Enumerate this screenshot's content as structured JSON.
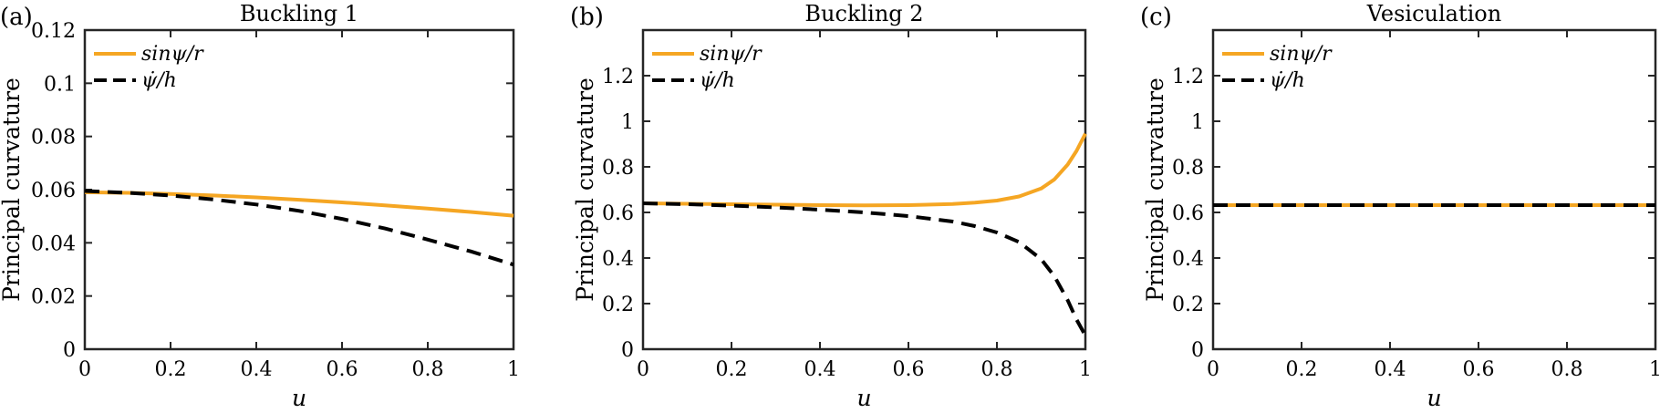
{
  "chart_data": [
    {
      "type": "line",
      "panel_label": "(a)",
      "title": "Buckling 1",
      "xlabel": "u",
      "ylabel": "Principal curvature",
      "xlim": [
        0,
        1
      ],
      "ylim": [
        0,
        0.12
      ],
      "xticks": [
        "0",
        "0.2",
        "0.4",
        "0.6",
        "0.8",
        "1"
      ],
      "yticks": [
        "0",
        "0.02",
        "0.04",
        "0.06",
        "0.08",
        "0.1",
        "0.12"
      ],
      "legend_position": "top-left",
      "series": [
        {
          "name": "sinψ/r",
          "color": "#f5a623",
          "style": "solid",
          "x": [
            0,
            0.1,
            0.2,
            0.3,
            0.4,
            0.5,
            0.6,
            0.7,
            0.8,
            0.9,
            1.0
          ],
          "y": [
            0.059,
            0.0588,
            0.0584,
            0.0578,
            0.0571,
            0.0562,
            0.0552,
            0.0541,
            0.0529,
            0.0516,
            0.0502
          ]
        },
        {
          "name": "ψ̇/h",
          "color": "#000000",
          "style": "dashed",
          "x": [
            0,
            0.1,
            0.2,
            0.3,
            0.4,
            0.5,
            0.6,
            0.7,
            0.8,
            0.9,
            1.0
          ],
          "y": [
            0.0595,
            0.0588,
            0.0578,
            0.0563,
            0.0544,
            0.052,
            0.049,
            0.0454,
            0.0412,
            0.0368,
            0.0318
          ]
        }
      ]
    },
    {
      "type": "line",
      "panel_label": "(b)",
      "title": "Buckling 2",
      "xlabel": "u",
      "ylabel": "Principal curvature",
      "xlim": [
        0,
        1
      ],
      "ylim": [
        0,
        1.4
      ],
      "xticks": [
        "0",
        "0.2",
        "0.4",
        "0.6",
        "0.8",
        "1"
      ],
      "yticks": [
        "0",
        "0.2",
        "0.4",
        "0.6",
        "0.8",
        "1",
        "1.2"
      ],
      "legend_position": "top-left",
      "series": [
        {
          "name": "sinψ/r",
          "color": "#f5a623",
          "style": "solid",
          "x": [
            0,
            0.1,
            0.2,
            0.3,
            0.4,
            0.5,
            0.6,
            0.7,
            0.75,
            0.8,
            0.85,
            0.9,
            0.93,
            0.96,
            0.98,
            1.0
          ],
          "y": [
            0.64,
            0.638,
            0.636,
            0.634,
            0.632,
            0.631,
            0.632,
            0.637,
            0.643,
            0.652,
            0.67,
            0.705,
            0.745,
            0.81,
            0.87,
            0.945
          ]
        },
        {
          "name": "ψ̇/h",
          "color": "#000000",
          "style": "dashed",
          "x": [
            0,
            0.1,
            0.2,
            0.3,
            0.4,
            0.5,
            0.6,
            0.7,
            0.75,
            0.8,
            0.85,
            0.9,
            0.93,
            0.96,
            0.98,
            1.0
          ],
          "y": [
            0.64,
            0.636,
            0.63,
            0.622,
            0.612,
            0.6,
            0.584,
            0.56,
            0.54,
            0.512,
            0.47,
            0.395,
            0.32,
            0.215,
            0.13,
            0.06
          ]
        }
      ]
    },
    {
      "type": "line",
      "panel_label": "(c)",
      "title": "Vesiculation",
      "xlabel": "u",
      "ylabel": "Principal curvature",
      "xlim": [
        0,
        1
      ],
      "ylim": [
        0,
        1.4
      ],
      "xticks": [
        "0",
        "0.2",
        "0.4",
        "0.6",
        "0.8",
        "1"
      ],
      "yticks": [
        "0",
        "0.2",
        "0.4",
        "0.6",
        "0.8",
        "1",
        "1.2"
      ],
      "legend_position": "top-left",
      "series": [
        {
          "name": "sinψ/r",
          "color": "#f5a623",
          "style": "solid",
          "x": [
            0,
            1
          ],
          "y": [
            0.632,
            0.632
          ]
        },
        {
          "name": "ψ̇/h",
          "color": "#000000",
          "style": "dashed",
          "x": [
            0,
            1
          ],
          "y": [
            0.632,
            0.632
          ]
        }
      ]
    }
  ]
}
